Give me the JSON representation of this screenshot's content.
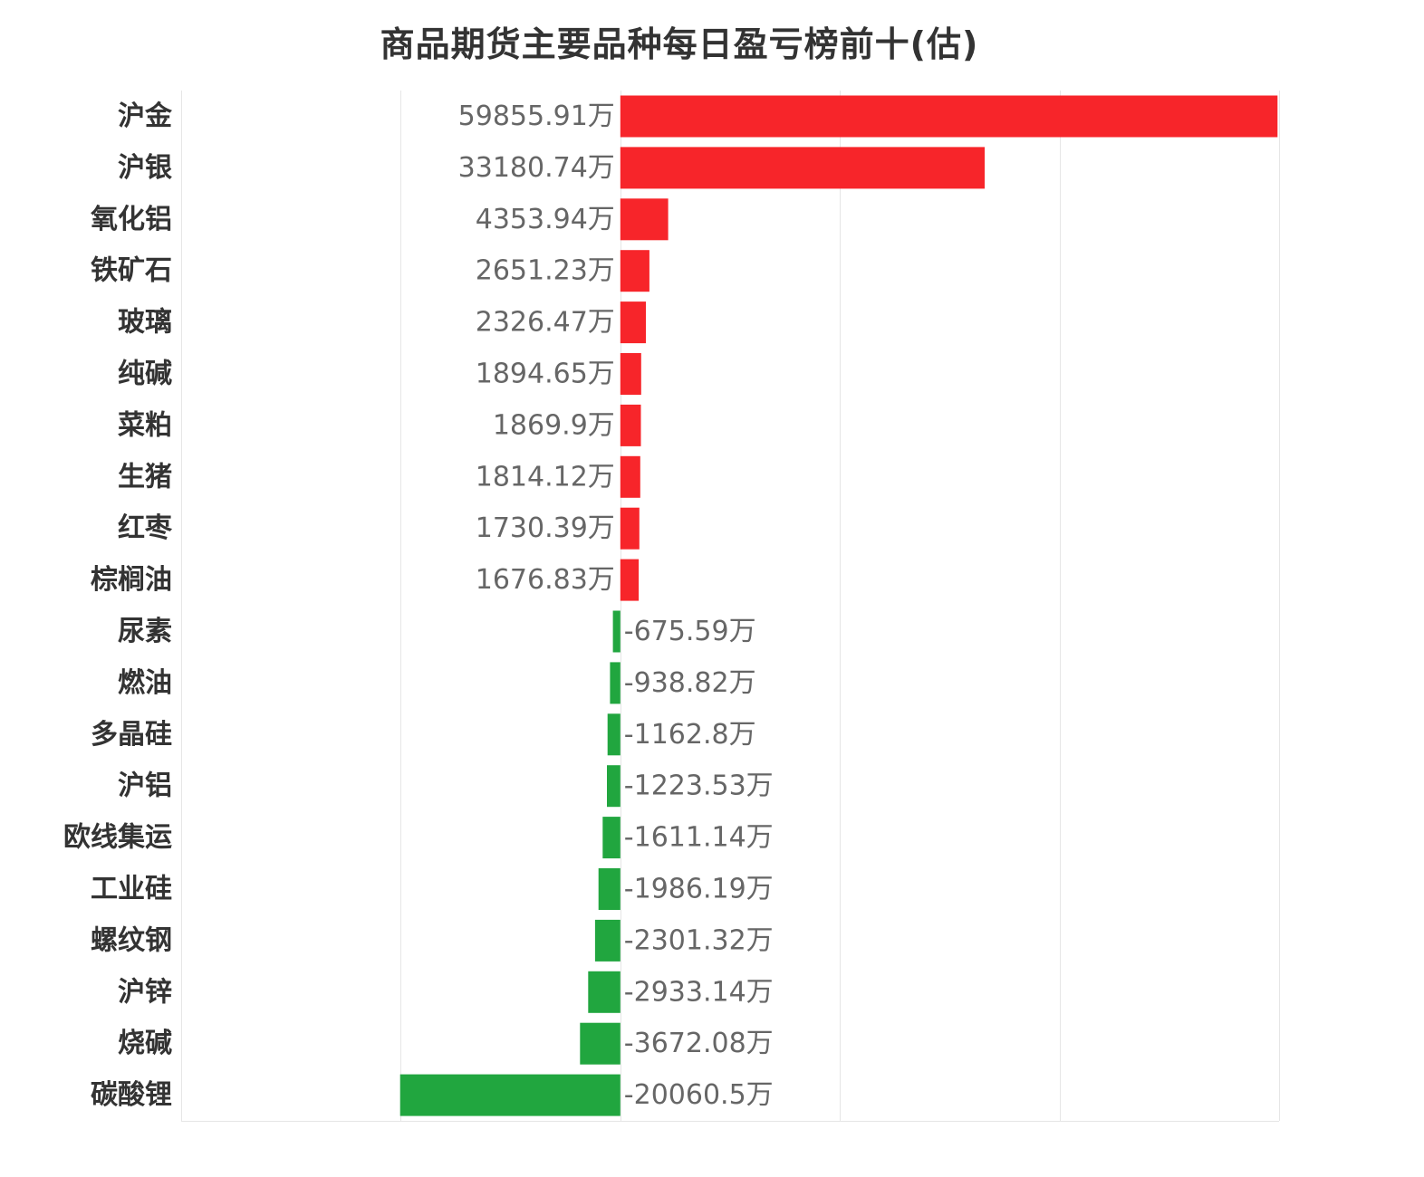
{
  "chart_data": {
    "type": "bar",
    "orientation": "horizontal",
    "title": "商品期货主要品种每日盈亏榜前十(估)",
    "unit_suffix": "万",
    "categories": [
      "沪金",
      "沪银",
      "氧化铝",
      "铁矿石",
      "玻璃",
      "纯碱",
      "菜粕",
      "生猪",
      "红枣",
      "棕榈油",
      "尿素",
      "燃油",
      "多晶硅",
      "沪铝",
      "欧线集运",
      "工业硅",
      "螺纹钢",
      "沪锌",
      "烧碱",
      "碳酸锂"
    ],
    "values": [
      59855.91,
      33180.74,
      4353.94,
      2651.23,
      2326.47,
      1894.65,
      1869.9,
      1814.12,
      1730.39,
      1676.83,
      -675.59,
      -938.82,
      -1162.8,
      -1223.53,
      -1611.14,
      -1986.19,
      -2301.32,
      -2933.14,
      -3672.08,
      -20060.5
    ],
    "value_labels": [
      "59855.91万",
      "33180.74万",
      "4353.94万",
      "2651.23万",
      "2326.47万",
      "1894.65万",
      "1869.9万",
      "1814.12万",
      "1730.39万",
      "1676.83万",
      "-675.59万",
      "-938.82万",
      "-1162.8万",
      "-1223.53万",
      "-1611.14万",
      "-1986.19万",
      "-2301.32万",
      "-2933.14万",
      "-3672.08万",
      "-20060.5万"
    ],
    "xlim": [
      -40000,
      60000
    ],
    "grid": true,
    "colors": {
      "positive": "#f7252a",
      "negative": "#21a63f",
      "grid": "#e6e6e6",
      "category_text": "#333333",
      "value_text": "#666666"
    }
  }
}
